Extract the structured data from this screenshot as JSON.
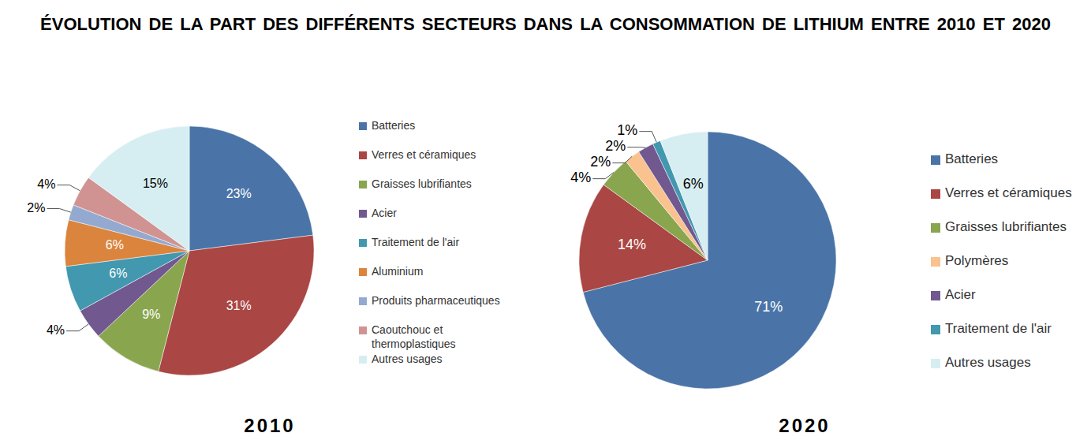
{
  "title": "ÉVOLUTION DE LA PART DES DIFFÉRENTS SECTEURS DANS LA CONSOMMATION DE LITHIUM ENTRE 2010 ET 2020",
  "chart_data": [
    {
      "type": "pie",
      "title": "2010",
      "categories": [
        "Batteries",
        "Verres et céramiques",
        "Graisses lubrifiantes",
        "Acier",
        "Traitement de l'air",
        "Aluminium",
        "Produits pharmaceutiques",
        "Caoutchouc et thermoplastiques",
        "Autres usages"
      ],
      "values": [
        23,
        31,
        9,
        4,
        6,
        6,
        2,
        4,
        15
      ],
      "value_labels": [
        "23%",
        "31%",
        "9%",
        "4%",
        "6%",
        "6%",
        "2%",
        "4%",
        "15%"
      ],
      "colors": [
        "#4a74a8",
        "#aa4643",
        "#89a54e",
        "#71588f",
        "#4198af",
        "#db843d",
        "#93a9cf",
        "#d19392",
        "#d6eef2"
      ],
      "data_labels": true
    },
    {
      "type": "pie",
      "title": "2020",
      "categories": [
        "Batteries",
        "Verres et céramiques",
        "Graisses lubrifiantes",
        "Polymères",
        "Acier",
        "Traitement de l'air",
        "Autres usages"
      ],
      "values": [
        71,
        14,
        4,
        2,
        2,
        1,
        6
      ],
      "value_labels": [
        "71%",
        "14%",
        "4%",
        "2%",
        "2%",
        "1%",
        "6%"
      ],
      "colors": [
        "#4a74a8",
        "#aa4643",
        "#89a54e",
        "#f9c28e",
        "#71588f",
        "#4198af",
        "#d6eef2"
      ],
      "data_labels": true
    }
  ]
}
